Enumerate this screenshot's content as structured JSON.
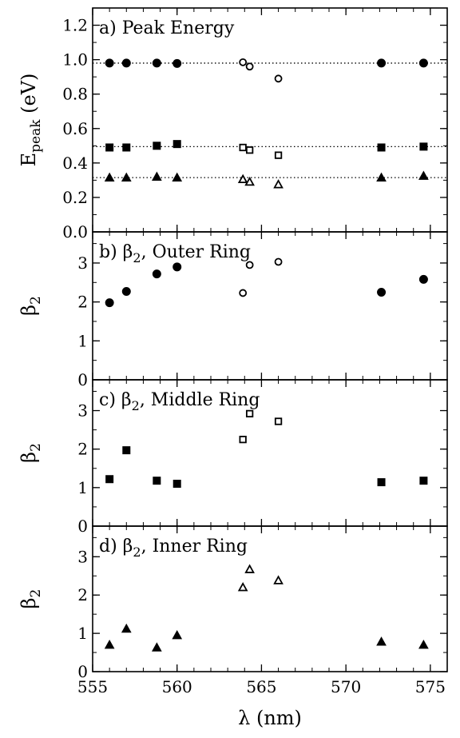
{
  "x_axis": {
    "label": "λ (nm)",
    "range": [
      555,
      576
    ],
    "ticks": [
      555,
      560,
      565,
      570,
      575
    ]
  },
  "chart_data": [
    {
      "type": "scatter",
      "title": "a) Peak Energy",
      "ylabel": "E_peak (eV)",
      "ylim": [
        0,
        1.3
      ],
      "yticks": [
        "0.0",
        "0.2",
        "0.4",
        "0.6",
        "0.8",
        "1.0",
        "1.2"
      ],
      "reference_lines": [
        0.98,
        0.495,
        0.315
      ],
      "series": [
        {
          "marker": "circle",
          "filled": true,
          "x": [
            556,
            557,
            558.8,
            560,
            572.1,
            574.6
          ],
          "y": [
            0.98,
            0.98,
            0.98,
            0.978,
            0.98,
            0.98
          ]
        },
        {
          "marker": "circle",
          "filled": false,
          "x": [
            563.9,
            564.3,
            566
          ],
          "y": [
            0.985,
            0.96,
            0.89
          ]
        },
        {
          "marker": "square",
          "filled": true,
          "x": [
            556,
            557,
            558.8,
            560,
            572.1,
            574.6
          ],
          "y": [
            0.49,
            0.49,
            0.5,
            0.51,
            0.49,
            0.495
          ]
        },
        {
          "marker": "square",
          "filled": false,
          "x": [
            563.9,
            564.3,
            566
          ],
          "y": [
            0.49,
            0.475,
            0.445
          ]
        },
        {
          "marker": "triangle",
          "filled": true,
          "x": [
            556,
            557,
            558.8,
            560,
            572.1,
            574.6
          ],
          "y": [
            0.315,
            0.315,
            0.32,
            0.315,
            0.315,
            0.325
          ]
        },
        {
          "marker": "triangle",
          "filled": false,
          "x": [
            563.9,
            564.3,
            566
          ],
          "y": [
            0.305,
            0.29,
            0.275
          ]
        }
      ]
    },
    {
      "type": "scatter",
      "title": "b) β2, Outer Ring",
      "ylabel": "β2",
      "ylim": [
        0,
        3.8
      ],
      "yticks": [
        "0",
        "1",
        "2",
        "3"
      ],
      "series": [
        {
          "marker": "circle",
          "filled": true,
          "x": [
            556,
            557,
            558.8,
            560,
            572.1,
            574.6
          ],
          "y": [
            1.98,
            2.27,
            2.72,
            2.9,
            2.25,
            2.58
          ]
        },
        {
          "marker": "circle",
          "filled": false,
          "x": [
            563.9,
            564.3,
            566
          ],
          "y": [
            2.23,
            2.95,
            3.03
          ]
        }
      ]
    },
    {
      "type": "scatter",
      "title": "c) β2, Middle Ring",
      "ylabel": "β2",
      "ylim": [
        0,
        3.8
      ],
      "yticks": [
        "0",
        "1",
        "2",
        "3"
      ],
      "series": [
        {
          "marker": "square",
          "filled": true,
          "x": [
            556,
            557,
            558.8,
            560,
            572.1,
            574.6
          ],
          "y": [
            1.22,
            1.97,
            1.18,
            1.1,
            1.14,
            1.18
          ]
        },
        {
          "marker": "square",
          "filled": false,
          "x": [
            563.9,
            564.3,
            566
          ],
          "y": [
            2.25,
            2.92,
            2.72
          ]
        }
      ]
    },
    {
      "type": "scatter",
      "title": "d) β2, Inner Ring",
      "ylabel": "β2",
      "ylim": [
        0,
        3.8
      ],
      "yticks": [
        "0",
        "1",
        "2",
        "3"
      ],
      "series": [
        {
          "marker": "triangle",
          "filled": true,
          "x": [
            556,
            557,
            558.8,
            560,
            572.1,
            574.6
          ],
          "y": [
            0.7,
            1.12,
            0.63,
            0.95,
            0.78,
            0.7
          ]
        },
        {
          "marker": "triangle",
          "filled": false,
          "x": [
            563.9,
            564.3,
            566
          ],
          "y": [
            2.2,
            2.67,
            2.38
          ]
        }
      ]
    }
  ]
}
